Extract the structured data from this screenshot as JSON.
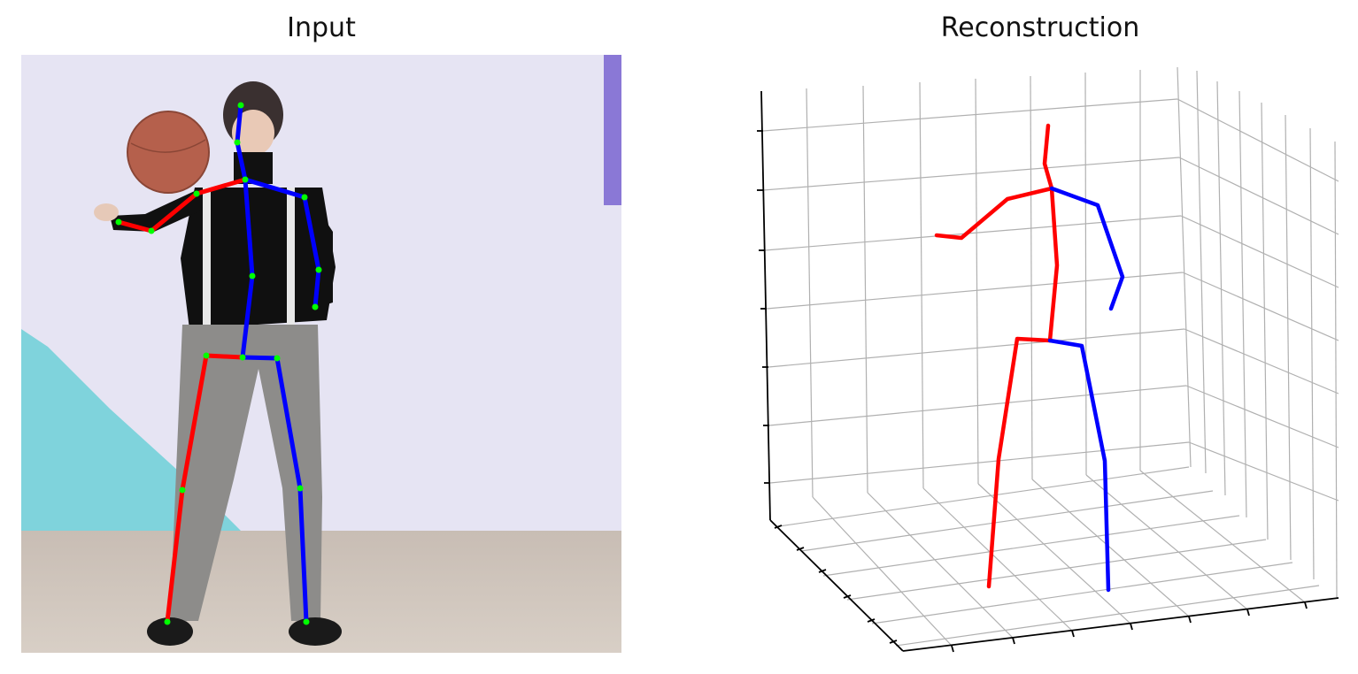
{
  "panels": {
    "left": {
      "title": "Input"
    },
    "right": {
      "title": "Reconstruction"
    }
  },
  "colors": {
    "right_side": "#ff0000",
    "left_side": "#0000ff",
    "joint": "#00ff00",
    "grid": "#b0b0b0",
    "axis": "#000000"
  },
  "skeleton_note": {
    "joints": [
      "head",
      "neck",
      "thorax",
      "spine",
      "hip",
      "r_shoulder",
      "r_elbow",
      "r_wrist",
      "l_shoulder",
      "l_elbow",
      "l_wrist",
      "r_hip",
      "r_knee",
      "r_ankle",
      "l_hip",
      "l_knee",
      "l_ankle"
    ]
  }
}
